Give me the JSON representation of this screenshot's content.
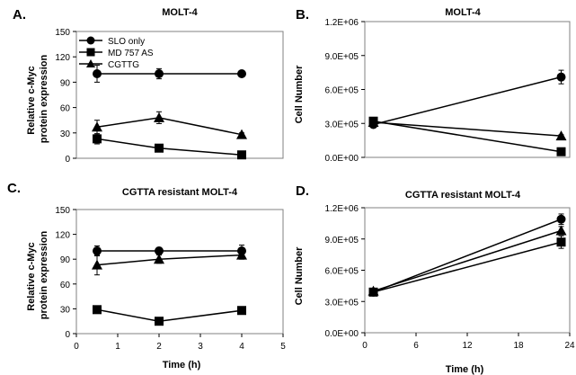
{
  "chart_data": [
    {
      "panel": "A.",
      "type": "line",
      "title": "MOLT-4",
      "ylabel": "Relative c-Myc protein expression",
      "ylabel_lines": [
        "Relative c-Myc",
        "protein expression"
      ],
      "xlabel": "",
      "ylim": [
        0,
        150
      ],
      "xlim": [
        0,
        5
      ],
      "yticks": [
        0,
        30,
        60,
        90,
        120,
        150
      ],
      "ytick_labels": [
        "0",
        "30",
        "60",
        "90",
        "120",
        "150"
      ],
      "xticks": [],
      "xtick_labels": [],
      "grid": false,
      "legend": "top-left",
      "series": [
        {
          "name": "SLO only",
          "marker": "circle",
          "x": [
            0.5,
            2,
            4
          ],
          "y": [
            100,
            100,
            100
          ],
          "err": [
            10,
            6,
            3
          ]
        },
        {
          "name": "MD 757 AS",
          "marker": "square",
          "x": [
            0.5,
            2,
            4
          ],
          "y": [
            23,
            12,
            4
          ],
          "err": [
            6,
            2,
            2
          ]
        },
        {
          "name": "CGTTG",
          "marker": "triangle",
          "x": [
            0.5,
            2,
            4
          ],
          "y": [
            37,
            48,
            28
          ],
          "err": [
            8,
            7,
            2
          ]
        }
      ]
    },
    {
      "panel": "B.",
      "type": "line",
      "title": "MOLT-4",
      "ylabel": "Cell Number",
      "ylabel_lines": [
        "Cell Number"
      ],
      "xlabel": "",
      "ylim": [
        0,
        1200000
      ],
      "xlim": [
        0,
        24
      ],
      "yticks": [
        0,
        300000,
        600000,
        900000,
        1200000
      ],
      "ytick_labels": [
        "0.0E+00",
        "3.0E+05",
        "6.0E+05",
        "9.0E+05",
        "1.2E+06"
      ],
      "xticks": [],
      "xtick_labels": [],
      "grid": false,
      "legend": "none",
      "series": [
        {
          "marker": "circle",
          "x": [
            1,
            23
          ],
          "y": [
            290000,
            710000
          ],
          "err": [
            15000,
            60000
          ]
        },
        {
          "marker": "square",
          "x": [
            1,
            23
          ],
          "y": [
            320000,
            50000
          ],
          "err": [
            10000,
            8000
          ]
        },
        {
          "marker": "triangle",
          "x": [
            1,
            23
          ],
          "y": [
            310000,
            190000
          ],
          "err": [
            10000,
            10000
          ]
        }
      ]
    },
    {
      "panel": "C.",
      "type": "line",
      "title": "CGTTA resistant MOLT-4",
      "ylabel": "Relative c-Myc protein expression",
      "ylabel_lines": [
        "Relative c-Myc",
        "protein expression"
      ],
      "xlabel": "Time (h)",
      "ylim": [
        0,
        150
      ],
      "xlim": [
        0,
        5
      ],
      "yticks": [
        0,
        30,
        60,
        90,
        120,
        150
      ],
      "ytick_labels": [
        "0",
        "30",
        "60",
        "90",
        "120",
        "150"
      ],
      "xticks": [
        0,
        1,
        2,
        3,
        4,
        5
      ],
      "xtick_labels": [
        "0",
        "1",
        "2",
        "3",
        "4",
        "5"
      ],
      "grid": false,
      "legend": "none",
      "series": [
        {
          "marker": "circle",
          "x": [
            0.5,
            2,
            4
          ],
          "y": [
            100,
            100,
            100
          ],
          "err": [
            6,
            4,
            7
          ]
        },
        {
          "marker": "square",
          "x": [
            0.5,
            2,
            4
          ],
          "y": [
            29,
            15,
            28
          ],
          "err": [
            3,
            3,
            3
          ]
        },
        {
          "marker": "triangle",
          "x": [
            0.5,
            2,
            4
          ],
          "y": [
            83,
            90,
            95
          ],
          "err": [
            12,
            5,
            5
          ]
        }
      ]
    },
    {
      "panel": "D.",
      "type": "line",
      "title": "CGTTA resistant MOLT-4",
      "ylabel": "Cell Number",
      "ylabel_lines": [
        "Cell Number"
      ],
      "xlabel": "Time (h)",
      "ylim": [
        0,
        1200000
      ],
      "xlim": [
        0,
        24
      ],
      "yticks": [
        0,
        300000,
        600000,
        900000,
        1200000
      ],
      "ytick_labels": [
        "0.0E+00",
        "3.0E+05",
        "6.0E+05",
        "9.0E+05",
        "1.2E+06"
      ],
      "xticks": [
        0,
        6,
        12,
        18,
        24
      ],
      "xtick_labels": [
        "0",
        "6",
        "12",
        "18",
        "24"
      ],
      "grid": false,
      "legend": "none",
      "series": [
        {
          "marker": "circle",
          "x": [
            1,
            23
          ],
          "y": [
            390000,
            1090000
          ],
          "err": [
            10000,
            50000
          ]
        },
        {
          "marker": "square",
          "x": [
            1,
            23
          ],
          "y": [
            390000,
            870000
          ],
          "err": [
            10000,
            60000
          ]
        },
        {
          "marker": "triangle",
          "x": [
            1,
            23
          ],
          "y": [
            400000,
            980000
          ],
          "err": [
            10000,
            40000
          ]
        }
      ]
    }
  ]
}
